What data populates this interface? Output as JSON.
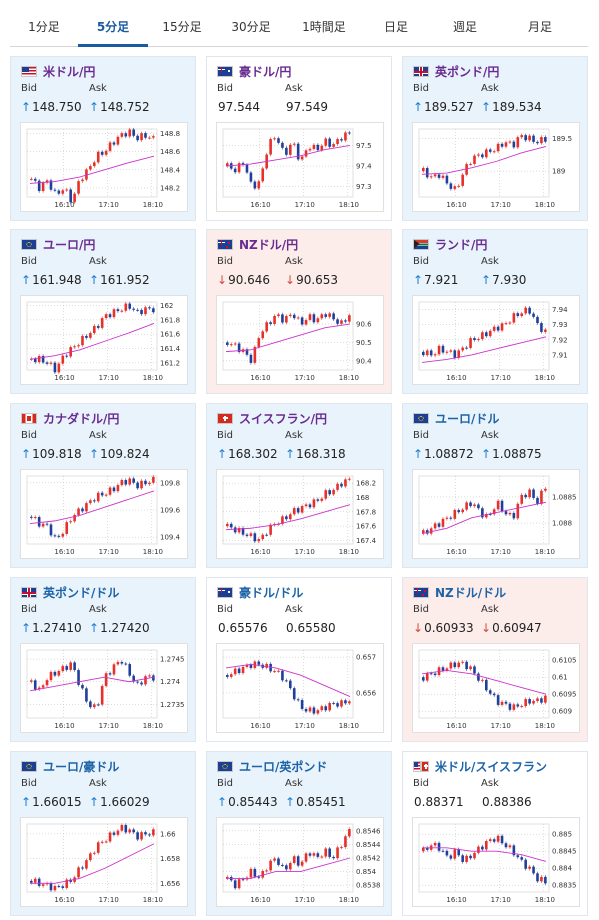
{
  "tabs": [
    {
      "label": "1分足",
      "active": false
    },
    {
      "label": "5分足",
      "active": true
    },
    {
      "label": "15分足",
      "active": false
    },
    {
      "label": "30分足",
      "active": false
    },
    {
      "label": "1時間足",
      "active": false
    },
    {
      "label": "日足",
      "active": false
    },
    {
      "label": "週足",
      "active": false
    },
    {
      "label": "月足",
      "active": false
    }
  ],
  "labels": {
    "bid": "Bid",
    "ask": "Ask"
  },
  "colors": {
    "up_candle": "#e6302a",
    "down_candle": "#1f3f9a",
    "ma": "#cc33cc",
    "ma_fast": "#33aaee",
    "up_card": "#e9f3fb",
    "down_card": "#fcecea",
    "up_arrow": "#1c7bd4",
    "down_arrow": "#d24a3c"
  },
  "cards": [
    {
      "pair": "米ドル/円",
      "flag": "us",
      "jpy": true,
      "dir": "up",
      "bid": "148.750",
      "ask": "148.752",
      "bid_arrow": "↑",
      "ask_arrow": "↑",
      "chart": {
        "yticks": [
          "148.8",
          "148.6",
          "148.4",
          "148.2"
        ],
        "xticks": [
          "16:10",
          "17:10",
          "18:10"
        ],
        "ylim": [
          148.1,
          148.85
        ],
        "path": [
          148.3,
          148.2,
          148.28,
          148.12,
          148.2,
          148.05,
          148.3,
          148.4,
          148.55,
          148.6,
          148.7,
          148.78,
          148.82,
          148.75,
          148.78,
          148.74
        ],
        "ma": [
          148.25,
          148.27,
          148.32,
          148.4,
          148.48,
          148.55
        ]
      }
    },
    {
      "pair": "豪ドル/円",
      "flag": "au",
      "jpy": true,
      "dir": "flat",
      "bid": "97.544",
      "ask": "97.549",
      "bid_arrow": "",
      "ask_arrow": "",
      "chart": {
        "yticks": [
          "97.5",
          "97.4",
          "97.3"
        ],
        "xticks": [
          "16:10",
          "17:10",
          "18:10"
        ],
        "ylim": [
          97.25,
          97.58
        ],
        "path": [
          97.4,
          97.38,
          97.42,
          97.3,
          97.32,
          97.5,
          97.55,
          97.45,
          97.52,
          97.42,
          97.5,
          97.48,
          97.52,
          97.5,
          97.54,
          97.56
        ],
        "ma": [
          97.4,
          97.41,
          97.43,
          97.45,
          97.48,
          97.5
        ]
      }
    },
    {
      "pair": "英ポンド/円",
      "flag": "uk",
      "jpy": true,
      "dir": "up",
      "bid": "189.527",
      "ask": "189.534",
      "bid_arrow": "↑",
      "ask_arrow": "↑",
      "chart": {
        "yticks": [
          "189.5",
          "189"
        ],
        "xticks": [
          "16:10",
          "17:10",
          "18:10"
        ],
        "ylim": [
          188.6,
          189.65
        ],
        "path": [
          189.0,
          188.9,
          188.95,
          188.8,
          188.7,
          189.0,
          189.2,
          189.25,
          189.3,
          189.35,
          189.45,
          189.4,
          189.55,
          189.5,
          189.45,
          189.5
        ],
        "ma": [
          188.95,
          188.97,
          189.05,
          189.15,
          189.28,
          189.38
        ]
      }
    },
    {
      "pair": "ユーロ/円",
      "flag": "eu",
      "jpy": true,
      "dir": "up",
      "bid": "161.948",
      "ask": "161.952",
      "bid_arrow": "↑",
      "ask_arrow": "↑",
      "chart": {
        "yticks": [
          "162",
          "161.8",
          "161.6",
          "161.4",
          "161.2"
        ],
        "xticks": [
          "16:10",
          "17:10",
          "18:10"
        ],
        "ylim": [
          161.1,
          162.05
        ],
        "path": [
          161.25,
          161.25,
          161.2,
          161.1,
          161.3,
          161.4,
          161.5,
          161.6,
          161.7,
          161.85,
          161.9,
          161.95,
          162.0,
          161.9,
          161.95,
          161.95
        ],
        "ma": [
          161.25,
          161.3,
          161.38,
          161.5,
          161.62,
          161.75
        ]
      }
    },
    {
      "pair": "NZドル/円",
      "flag": "nz",
      "jpy": true,
      "dir": "down",
      "bid": "90.646",
      "ask": "90.653",
      "bid_arrow": "↓",
      "ask_arrow": "↓",
      "chart": {
        "yticks": [
          "90.6",
          "90.5",
          "90.4"
        ],
        "xticks": [
          "16:10",
          "17:10",
          "18:10"
        ],
        "ylim": [
          90.35,
          90.72
        ],
        "path": [
          90.5,
          90.48,
          90.45,
          90.4,
          90.55,
          90.6,
          90.65,
          90.62,
          90.66,
          90.6,
          90.64,
          90.62,
          90.66,
          90.63,
          90.6,
          90.65
        ],
        "ma": [
          90.45,
          90.46,
          90.5,
          90.54,
          90.58,
          90.6
        ]
      }
    },
    {
      "pair": "ランド/円",
      "flag": "za",
      "jpy": true,
      "dir": "up",
      "bid": "7.921",
      "ask": "7.930",
      "bid_arrow": "↑",
      "ask_arrow": "↑",
      "chart": {
        "yticks": [
          "7.94",
          "7.93",
          "7.92",
          "7.91"
        ],
        "xticks": [
          "16:10",
          "17:10",
          "18:10"
        ],
        "ylim": [
          7.9,
          7.945
        ],
        "path": [
          7.912,
          7.91,
          7.914,
          7.912,
          7.91,
          7.915,
          7.92,
          7.922,
          7.925,
          7.928,
          7.93,
          7.935,
          7.938,
          7.94,
          7.93,
          7.925
        ],
        "ma": [
          7.905,
          7.907,
          7.91,
          7.914,
          7.918,
          7.922
        ]
      }
    },
    {
      "pair": "カナダドル/円",
      "flag": "ca",
      "jpy": true,
      "dir": "up",
      "bid": "109.818",
      "ask": "109.824",
      "bid_arrow": "↑",
      "ask_arrow": "↑",
      "chart": {
        "yticks": [
          "109.8",
          "109.6",
          "109.4"
        ],
        "xticks": [
          "16:10",
          "17:10",
          "18:10"
        ],
        "ylim": [
          109.35,
          109.85
        ],
        "path": [
          109.55,
          109.5,
          109.48,
          109.38,
          109.45,
          109.55,
          109.6,
          109.65,
          109.7,
          109.72,
          109.75,
          109.8,
          109.82,
          109.78,
          109.8,
          109.82
        ],
        "ma": [
          109.5,
          109.52,
          109.56,
          109.62,
          109.68,
          109.74
        ]
      }
    },
    {
      "pair": "スイスフラン/円",
      "flag": "ch",
      "jpy": true,
      "dir": "up",
      "bid": "168.302",
      "ask": "168.318",
      "bid_arrow": "↑",
      "ask_arrow": "↑",
      "chart": {
        "yticks": [
          "168.2",
          "168",
          "167.8",
          "167.6",
          "167.4"
        ],
        "xticks": [
          "16:10",
          "17:10",
          "18:10"
        ],
        "ylim": [
          167.35,
          168.3
        ],
        "path": [
          167.6,
          167.55,
          167.5,
          167.45,
          167.4,
          167.55,
          167.65,
          167.7,
          167.8,
          167.85,
          167.9,
          167.95,
          168.05,
          168.1,
          168.2,
          168.25
        ],
        "ma": [
          167.55,
          167.57,
          167.62,
          167.7,
          167.8,
          167.9
        ]
      }
    },
    {
      "pair": "ユーロ/ドル",
      "flag": "eu",
      "jpy": false,
      "dir": "up",
      "bid": "1.08872",
      "ask": "1.08875",
      "bid_arrow": "↑",
      "ask_arrow": "↑",
      "chart": {
        "yticks": [
          "1.0885",
          "1.088"
        ],
        "xticks": [
          "16:10",
          "17:10",
          "18:10"
        ],
        "ylim": [
          1.0876,
          1.0889
        ],
        "path": [
          1.0878,
          1.0879,
          1.088,
          1.0881,
          1.0882,
          1.0883,
          1.0884,
          1.0882,
          1.0881,
          1.0884,
          1.0882,
          1.0881,
          1.0885,
          1.0886,
          1.0884,
          1.0887
        ],
        "ma": [
          1.0878,
          1.0879,
          1.0881,
          1.0882,
          1.0883,
          1.0884
        ]
      }
    },
    {
      "pair": "英ポンド/ドル",
      "flag": "uk",
      "jpy": false,
      "dir": "up",
      "bid": "1.27410",
      "ask": "1.27420",
      "bid_arrow": "↑",
      "ask_arrow": "↑",
      "chart": {
        "yticks": [
          "1.2745",
          "1.274",
          "1.2735"
        ],
        "xticks": [
          "16:10",
          "17:10",
          "18:10"
        ],
        "ylim": [
          1.2732,
          1.2747
        ],
        "path": [
          1.274,
          1.2738,
          1.2741,
          1.2742,
          1.2743,
          1.2744,
          1.2739,
          1.2735,
          1.2734,
          1.2741,
          1.2743,
          1.2745,
          1.2742,
          1.2739,
          1.2741,
          1.2741
        ],
        "ma": [
          1.2738,
          1.2739,
          1.274,
          1.2741,
          1.274,
          1.2741
        ]
      }
    },
    {
      "pair": "豪ドル/ドル",
      "flag": "au",
      "jpy": false,
      "dir": "flat",
      "bid": "0.65576",
      "ask": "0.65580",
      "bid_arrow": "",
      "ask_arrow": "",
      "chart": {
        "yticks": [
          "0.657",
          "0.656"
        ],
        "xticks": [
          "16:10",
          "17:10",
          "18:10"
        ],
        "ylim": [
          0.6553,
          0.6572
        ],
        "path": [
          0.6565,
          0.6566,
          0.6567,
          0.6568,
          0.6568,
          0.6567,
          0.6566,
          0.6564,
          0.656,
          0.6556,
          0.6555,
          0.6555,
          0.6556,
          0.6557,
          0.6557,
          0.6558
        ],
        "ma": [
          0.6567,
          0.6568,
          0.6567,
          0.6565,
          0.6562,
          0.6559
        ]
      }
    },
    {
      "pair": "NZドル/ドル",
      "flag": "nz",
      "jpy": false,
      "dir": "down",
      "bid": "0.60933",
      "ask": "0.60947",
      "bid_arrow": "↓",
      "ask_arrow": "↓",
      "chart": {
        "yticks": [
          "0.6105",
          "0.61",
          "0.6095",
          "0.609"
        ],
        "xticks": [
          "16:10",
          "17:10",
          "18:10"
        ],
        "ylim": [
          0.6088,
          0.6108
        ],
        "path": [
          0.61,
          0.6101,
          0.6102,
          0.6103,
          0.6104,
          0.6104,
          0.6102,
          0.6099,
          0.6096,
          0.6093,
          0.6092,
          0.6091,
          0.6092,
          0.6093,
          0.6093,
          0.6094
        ],
        "ma": [
          0.6101,
          0.6102,
          0.6101,
          0.6099,
          0.6097,
          0.6095
        ]
      }
    },
    {
      "pair": "ユーロ/豪ドル",
      "flag": "eu",
      "jpy": false,
      "dir": "up",
      "bid": "1.66015",
      "ask": "1.66029",
      "bid_arrow": "↑",
      "ask_arrow": "↑",
      "chart": {
        "yticks": [
          "1.66",
          "1.658",
          "1.656"
        ],
        "xticks": [
          "16:10",
          "17:10",
          "18:10"
        ],
        "ylim": [
          1.6553,
          1.6608
        ],
        "path": [
          1.6562,
          1.656,
          1.6558,
          1.6556,
          1.6559,
          1.6563,
          1.6572,
          1.658,
          1.659,
          1.6595,
          1.66,
          1.6605,
          1.6603,
          1.6598,
          1.66,
          1.6601
        ],
        "ma": [
          1.656,
          1.656,
          1.6564,
          1.6572,
          1.6582,
          1.6592
        ]
      }
    },
    {
      "pair": "ユーロ/英ポンド",
      "flag": "eu",
      "jpy": false,
      "dir": "up",
      "bid": "0.85443",
      "ask": "0.85451",
      "bid_arrow": "↑",
      "ask_arrow": "↑",
      "chart": {
        "yticks": [
          "0.8546",
          "0.8544",
          "0.8542",
          "0.854",
          "0.8538"
        ],
        "xticks": [
          "16:10",
          "17:10",
          "18:10"
        ],
        "ylim": [
          0.8537,
          0.8547
        ],
        "path": [
          0.8539,
          0.8538,
          0.8539,
          0.854,
          0.8539,
          0.8541,
          0.8542,
          0.854,
          0.8542,
          0.8541,
          0.8543,
          0.8542,
          0.8543,
          0.8542,
          0.8544,
          0.8546
        ],
        "ma": [
          0.8539,
          0.8539,
          0.854,
          0.854,
          0.8541,
          0.8542
        ]
      }
    },
    {
      "pair": "米ドル/スイスフラン",
      "flag": "usch",
      "jpy": false,
      "dir": "flat",
      "bid": "0.88371",
      "ask": "0.88386",
      "bid_arrow": "",
      "ask_arrow": "",
      "chart": {
        "yticks": [
          "0.885",
          "0.8845",
          "0.884",
          "0.8835"
        ],
        "xticks": [
          "16:10",
          "17:10",
          "18:10"
        ],
        "ylim": [
          0.8833,
          0.8853
        ],
        "path": [
          0.8845,
          0.8847,
          0.8846,
          0.8843,
          0.8845,
          0.8842,
          0.8844,
          0.8846,
          0.8848,
          0.8849,
          0.8847,
          0.8845,
          0.8842,
          0.884,
          0.8837,
          0.8836
        ],
        "ma": [
          0.8846,
          0.8846,
          0.8845,
          0.8845,
          0.8844,
          0.8842
        ]
      }
    }
  ]
}
